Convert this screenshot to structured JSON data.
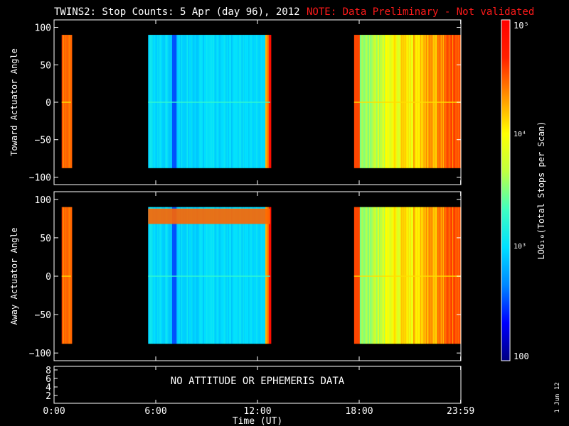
{
  "header": {
    "title": "TWINS2: Stop Counts:  5 Apr (day  96), 2012",
    "note": "NOTE: Data Preliminary - Not validated",
    "note_color": "#ff1a1a"
  },
  "side_date": "1 Jun 12",
  "chart_data": [
    {
      "type": "heatmap",
      "panel": "toward",
      "ylabel": "Toward Actuator Angle",
      "ylim": [
        -110,
        110
      ],
      "yticks": [
        100,
        50,
        0,
        -50,
        -100
      ],
      "xlim_hours": [
        0,
        24
      ],
      "data_blocks_hours": [
        [
          0.45,
          1.0
        ],
        [
          5.55,
          12.75
        ],
        [
          17.7,
          24.0
        ]
      ],
      "angle_range": [
        -88,
        90
      ]
    },
    {
      "type": "heatmap",
      "panel": "away",
      "ylabel": "Away Actuator Angle",
      "ylim": [
        -110,
        110
      ],
      "yticks": [
        100,
        50,
        0,
        -50,
        -100
      ],
      "xlim_hours": [
        0,
        24
      ],
      "data_blocks_hours": [
        [
          0.45,
          1.0
        ],
        [
          5.55,
          12.75
        ],
        [
          17.7,
          24.0
        ]
      ],
      "angle_range": [
        -88,
        90
      ]
    }
  ],
  "ephemeris": {
    "message": "NO ATTITUDE OR EPHEMERIS DATA",
    "yticks": [
      "8",
      "6",
      "4",
      "2"
    ]
  },
  "x_axis": {
    "label": "Time (UT)",
    "ticks": [
      {
        "hour": 0,
        "label": "0:00"
      },
      {
        "hour": 6,
        "label": "6:00"
      },
      {
        "hour": 12,
        "label": "12:00"
      },
      {
        "hour": 18,
        "label": "18:00"
      },
      {
        "hour": 23.983,
        "label": "23:59"
      }
    ]
  },
  "colorbar": {
    "label": "LOG₁₀(Total Stops per Scan)",
    "min_label": "100",
    "mid1": "10³",
    "mid2": "10⁴",
    "max_label": "10⁵",
    "stops": [
      "#000080",
      "#0000ff",
      "#0088ff",
      "#00e0ff",
      "#40ffc0",
      "#c0ff40",
      "#ffff00",
      "#ff9000",
      "#ff2000",
      "#ff0000"
    ]
  }
}
